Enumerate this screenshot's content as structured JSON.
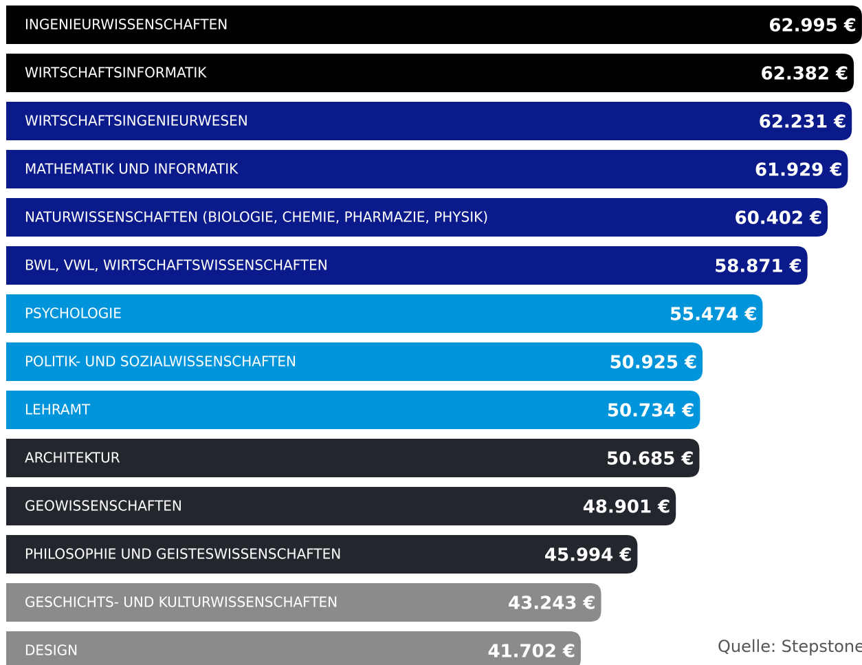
{
  "chart_data": {
    "type": "bar",
    "orientation": "horizontal",
    "categories": [
      "INGENIEURWISSENSCHAFTEN",
      "WIRTSCHAFTSINFORMATIK",
      "WIRTSCHAFTSINGENIEURWESEN",
      "MATHEMATIK UND INFORMATIK",
      "NATURWISSENSCHAFTEN (BIOLOGIE, CHEMIE, PHARMAZIE, PHYSIK)",
      "BWL, VWL, WIRTSCHAFTSWISSENSCHAFTEN",
      "PSYCHOLOGIE",
      "POLITIK- UND SOZIALWISSENSCHAFTEN",
      "LEHRAMT",
      "ARCHITEKTUR",
      "GEOWISSENSCHAFTEN",
      "PHILOSOPHIE UND GEISTESWISSENSCHAFTEN",
      "GESCHICHTS- UND KULTURWISSENSCHAFTEN",
      "DESIGN"
    ],
    "values": [
      62995,
      62382,
      62231,
      61929,
      60402,
      58871,
      55474,
      50925,
      50734,
      50685,
      48901,
      45994,
      43243,
      41702
    ],
    "value_labels": [
      "62.995 €",
      "62.382 €",
      "62.231 €",
      "61.929 €",
      "60.402 €",
      "58.871 €",
      "55.474 €",
      "50.925 €",
      "50.734 €",
      "50.685 €",
      "48.901 €",
      "45.994 €",
      "43.243 €",
      "41.702 €"
    ],
    "colors": [
      "#000000",
      "#000000",
      "#0b1a8a",
      "#0b1a8a",
      "#0b1a8a",
      "#0b1a8a",
      "#0095db",
      "#0095db",
      "#0095db",
      "#23262d",
      "#23262d",
      "#23262d",
      "#8b8b8b",
      "#8b8b8b"
    ],
    "xlim": [
      0,
      63000
    ],
    "source": "Quelle:  Stepstone"
  }
}
